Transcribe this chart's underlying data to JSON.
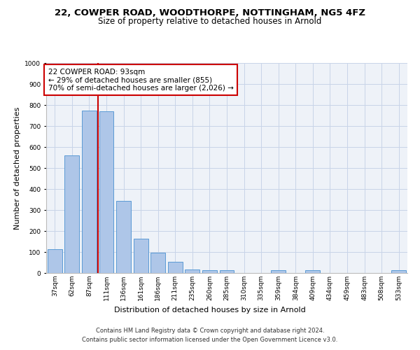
{
  "title": "22, COWPER ROAD, WOODTHORPE, NOTTINGHAM, NG5 4FZ",
  "subtitle": "Size of property relative to detached houses in Arnold",
  "xlabel": "Distribution of detached houses by size in Arnold",
  "ylabel": "Number of detached properties",
  "categories": [
    "37sqm",
    "62sqm",
    "87sqm",
    "111sqm",
    "136sqm",
    "161sqm",
    "186sqm",
    "211sqm",
    "235sqm",
    "260sqm",
    "285sqm",
    "310sqm",
    "335sqm",
    "359sqm",
    "384sqm",
    "409sqm",
    "434sqm",
    "459sqm",
    "483sqm",
    "508sqm",
    "533sqm"
  ],
  "values": [
    115,
    560,
    775,
    770,
    345,
    165,
    98,
    55,
    18,
    12,
    12,
    0,
    0,
    12,
    0,
    12,
    0,
    0,
    0,
    0,
    12
  ],
  "bar_color": "#aec6e8",
  "bar_edge_color": "#5b9bd5",
  "vline_color": "#cc0000",
  "annotation_box_text": "22 COWPER ROAD: 93sqm\n← 29% of detached houses are smaller (855)\n70% of semi-detached houses are larger (2,026) →",
  "annotation_box_color": "#cc0000",
  "ylim": [
    0,
    1000
  ],
  "yticks": [
    0,
    100,
    200,
    300,
    400,
    500,
    600,
    700,
    800,
    900,
    1000
  ],
  "bg_color": "#eef2f8",
  "grid_color": "#c8d4e8",
  "footer_line1": "Contains HM Land Registry data © Crown copyright and database right 2024.",
  "footer_line2": "Contains public sector information licensed under the Open Government Licence v3.0.",
  "title_fontsize": 9.5,
  "subtitle_fontsize": 8.5,
  "axis_label_fontsize": 8,
  "tick_fontsize": 6.5,
  "annotation_fontsize": 7.5,
  "footer_fontsize": 6
}
